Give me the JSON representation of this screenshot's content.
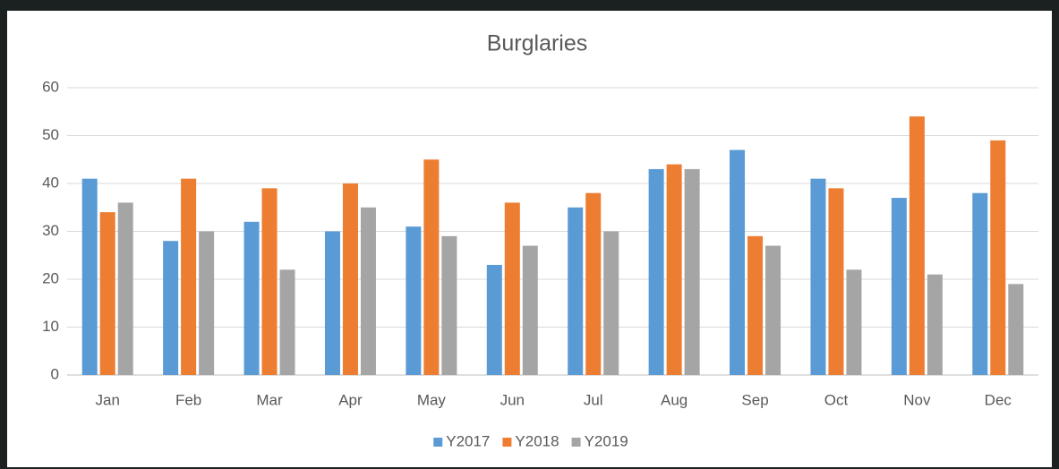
{
  "chart_data": {
    "type": "bar",
    "title": "Burglaries",
    "categories": [
      "Jan",
      "Feb",
      "Mar",
      "Apr",
      "May",
      "Jun",
      "Jul",
      "Aug",
      "Sep",
      "Oct",
      "Nov",
      "Dec"
    ],
    "series": [
      {
        "name": "Y2017",
        "color": "#5b9bd5",
        "values": [
          41,
          28,
          32,
          30,
          31,
          23,
          35,
          43,
          47,
          41,
          37,
          38
        ]
      },
      {
        "name": "Y2018",
        "color": "#ed7d31",
        "values": [
          34,
          41,
          39,
          40,
          45,
          36,
          38,
          44,
          29,
          39,
          54,
          49
        ]
      },
      {
        "name": "Y2019",
        "color": "#a5a5a5",
        "values": [
          36,
          30,
          22,
          35,
          29,
          27,
          30,
          43,
          27,
          22,
          21,
          19
        ]
      }
    ],
    "ylim": [
      0,
      60
    ],
    "yticks": [
      0,
      10,
      20,
      30,
      40,
      50,
      60
    ],
    "grid": true,
    "legend": "bottom"
  }
}
